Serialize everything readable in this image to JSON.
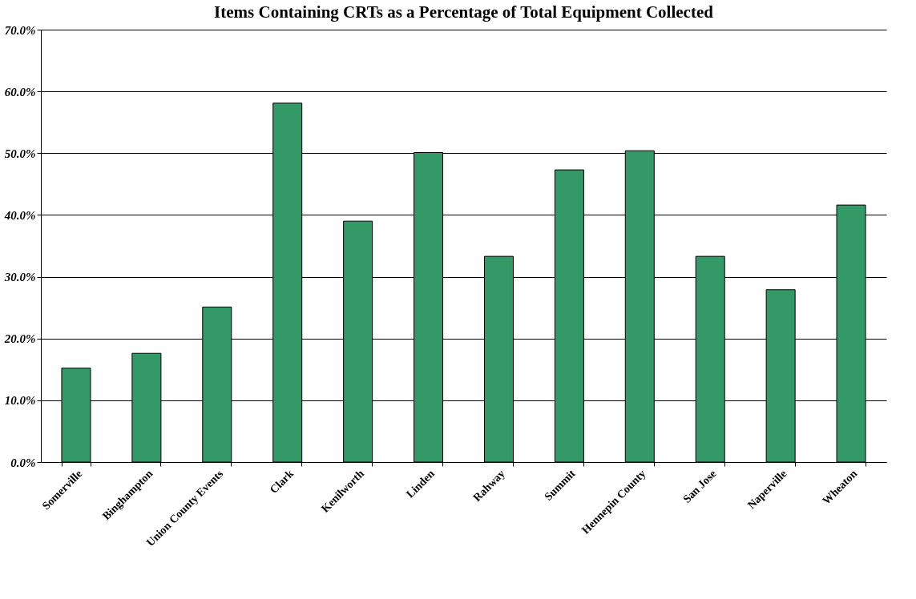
{
  "chart_data": {
    "type": "bar",
    "title": "Items Containing CRTs as a Percentage of Total Equipment Collected",
    "categories": [
      "Somerville",
      "Binghampton",
      "Union County Events",
      "Clark",
      "Kenilworth",
      "Linden",
      "Rahway",
      "Summit",
      "Hennepin County",
      "San Jose",
      "Naperville",
      "Wheaton"
    ],
    "values": [
      15.2,
      17.6,
      25.1,
      58.1,
      39.0,
      50.1,
      33.3,
      47.3,
      50.4,
      33.3,
      27.9,
      41.6
    ],
    "color": "#339966",
    "ylim": [
      0,
      70
    ],
    "yticks": [
      {
        "value": 0,
        "label": "0.0%"
      },
      {
        "value": 10,
        "label": "10.0%"
      },
      {
        "value": 20,
        "label": "20.0%"
      },
      {
        "value": 30,
        "label": "30.0%"
      },
      {
        "value": 40,
        "label": "40.0%"
      },
      {
        "value": 50,
        "label": "50.0%"
      },
      {
        "value": 60,
        "label": "60.0%"
      },
      {
        "value": 70,
        "label": "70.0%"
      }
    ],
    "grid": "y"
  }
}
